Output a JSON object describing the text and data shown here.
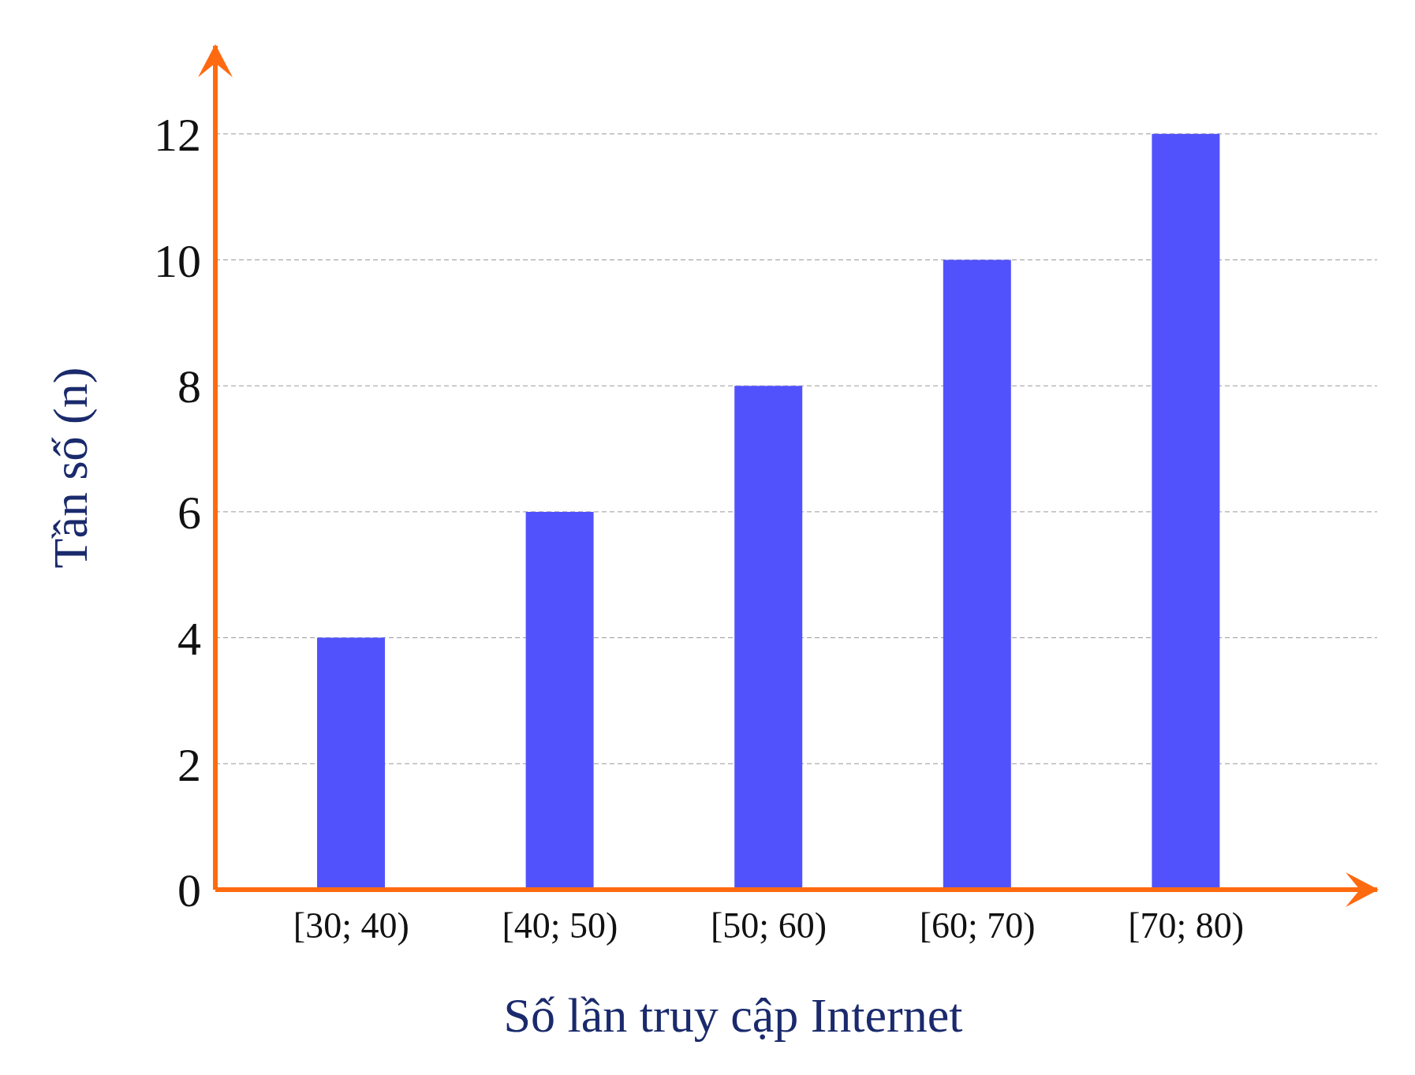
{
  "chart_data": {
    "type": "bar",
    "xlabel": "Số lần truy cập Internet",
    "ylabel": "Tần số (n)",
    "categories": [
      "[30; 40)",
      "[40; 50)",
      "[50; 60)",
      "[60; 70)",
      "[70; 80)"
    ],
    "values": [
      4,
      6,
      8,
      10,
      12
    ],
    "color": "#5252fc",
    "ylim": [
      0,
      13.4
    ],
    "yticks": [
      0,
      2,
      4,
      6,
      8,
      10,
      12
    ],
    "grid": "y"
  }
}
